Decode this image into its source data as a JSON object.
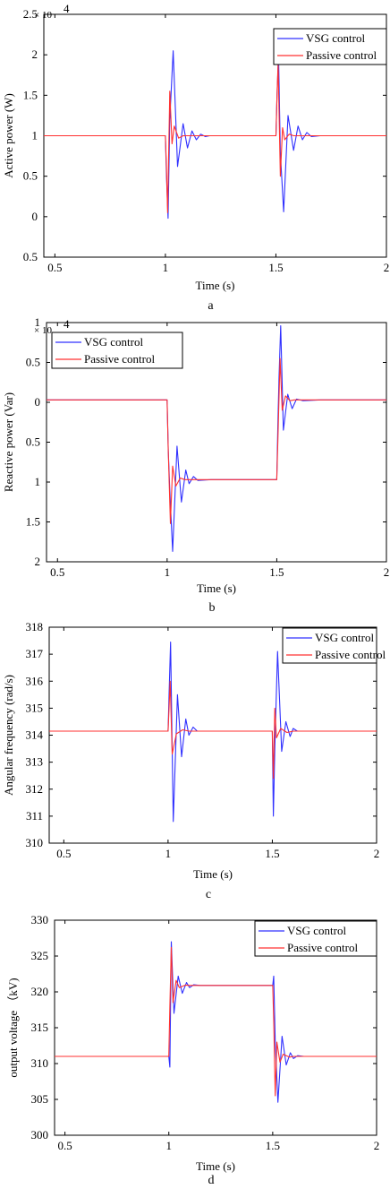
{
  "colors": {
    "vsg": "#3030ff",
    "passive": "#ff3030"
  },
  "charts": [
    {
      "id": "a",
      "caption": "a",
      "exponent_label": "× 10",
      "exponent_power": "4",
      "chart_data": {
        "type": "line",
        "xlabel": "Time (s)",
        "ylabel": "Active power (W)",
        "xlim": [
          0.45,
          2.0
        ],
        "ylim": [
          -0.5,
          2.5
        ],
        "y_scale": 10000,
        "xticks": [
          {
            "v": 0.5,
            "label": "0.5"
          },
          {
            "v": 1,
            "label": "1"
          },
          {
            "v": 1.5,
            "label": "1.5"
          },
          {
            "v": 2,
            "label": "2"
          }
        ],
        "yticks": [
          {
            "v": 2.5,
            "label": "2.5"
          },
          {
            "v": 2,
            "label": "2"
          },
          {
            "v": 1.5,
            "label": "1.5"
          },
          {
            "v": 1,
            "label": "1"
          },
          {
            "v": 0.5,
            "label": "0.5"
          },
          {
            "v": 0,
            "label": "0"
          },
          {
            "v": -0.5,
            "label": "0.5"
          }
        ],
        "legend": {
          "placement": "top-right"
        },
        "series": [
          {
            "name": "VSG control",
            "color_key": "vsg",
            "x": [
              0.45,
              1.0,
              1.005,
              1.012,
              1.02,
              1.035,
              1.055,
              1.08,
              1.1,
              1.12,
              1.14,
              1.16,
              1.18,
              1.2,
              1.25,
              1.5,
              1.505,
              1.512,
              1.52,
              1.535,
              1.555,
              1.58,
              1.6,
              1.62,
              1.64,
              1.66,
              1.7,
              2.0
            ],
            "y": [
              1.0,
              1.0,
              0.5,
              -0.02,
              1.2,
              2.05,
              0.62,
              1.15,
              0.85,
              1.06,
              0.95,
              1.02,
              0.99,
              1.0,
              1.0,
              1.0,
              1.5,
              2.0,
              0.8,
              0.06,
              1.25,
              0.82,
              1.12,
              0.95,
              1.04,
              0.99,
              1.0,
              1.0
            ]
          },
          {
            "name": "Passive control",
            "color_key": "passive",
            "x": [
              0.45,
              1.0,
              1.005,
              1.01,
              1.02,
              1.03,
              1.04,
              1.06,
              1.08,
              1.1,
              1.5,
              1.505,
              1.51,
              1.52,
              1.53,
              1.54,
              1.56,
              1.58,
              1.6,
              2.0
            ],
            "y": [
              1.0,
              1.0,
              0.6,
              0.05,
              1.55,
              0.9,
              1.12,
              0.97,
              1.0,
              1.0,
              1.0,
              1.5,
              1.9,
              0.5,
              1.1,
              0.95,
              1.02,
              1.0,
              1.0,
              1.0
            ]
          }
        ]
      }
    },
    {
      "id": "b",
      "caption": "b",
      "exponent_label": "× 10",
      "exponent_power": "4",
      "chart_data": {
        "type": "line",
        "xlabel": "Time (s)",
        "ylabel": "Reactive power (Var)",
        "xlim": [
          0.45,
          2.0
        ],
        "ylim": [
          -2.0,
          1.0
        ],
        "y_scale": 10000,
        "xticks": [
          {
            "v": 0.5,
            "label": "0.5"
          },
          {
            "v": 1,
            "label": "1"
          },
          {
            "v": 1.5,
            "label": "1.5"
          },
          {
            "v": 2,
            "label": "2"
          }
        ],
        "yticks": [
          {
            "v": 1,
            "label": "1"
          },
          {
            "v": 0.5,
            "label": "0.5"
          },
          {
            "v": 0,
            "label": "0"
          },
          {
            "v": -0.5,
            "label": "0.5"
          },
          {
            "v": -1,
            "label": "1"
          },
          {
            "v": -1.5,
            "label": "1.5"
          },
          {
            "v": -2,
            "label": "2"
          }
        ],
        "legend": {
          "placement": "top-left"
        },
        "series": [
          {
            "name": "VSG control",
            "color_key": "vsg",
            "x": [
              0.45,
              1.0,
              1.005,
              1.012,
              1.025,
              1.045,
              1.065,
              1.085,
              1.1,
              1.12,
              1.14,
              1.2,
              1.5,
              1.505,
              1.51,
              1.518,
              1.53,
              1.55,
              1.57,
              1.59,
              1.62,
              1.7,
              2.0
            ],
            "y": [
              0.03,
              0.03,
              -0.6,
              -1.1,
              -1.87,
              -0.55,
              -1.25,
              -0.85,
              -1.02,
              -0.93,
              -0.98,
              -0.97,
              -0.97,
              -0.3,
              0.3,
              0.96,
              -0.35,
              0.1,
              -0.08,
              0.04,
              0.02,
              0.03,
              0.03
            ]
          },
          {
            "name": "Passive control",
            "color_key": "passive",
            "x": [
              0.45,
              1.0,
              1.005,
              1.015,
              1.025,
              1.04,
              1.06,
              1.08,
              1.1,
              1.5,
              1.505,
              1.515,
              1.525,
              1.54,
              1.56,
              1.58,
              2.0
            ],
            "y": [
              0.03,
              0.03,
              -0.6,
              -1.52,
              -0.8,
              -1.05,
              -0.95,
              -0.97,
              -0.97,
              -0.97,
              -0.5,
              0.55,
              -0.1,
              0.08,
              0.02,
              0.03,
              0.03
            ]
          }
        ]
      }
    },
    {
      "id": "c",
      "caption": "c",
      "chart_data": {
        "type": "line",
        "xlabel": "Time (s)",
        "ylabel": "Angular frequency (rad/s)",
        "xlim": [
          0.43,
          2.0
        ],
        "ylim": [
          310,
          318
        ],
        "xticks": [
          {
            "v": 0.5,
            "label": "0.5"
          },
          {
            "v": 1,
            "label": "1"
          },
          {
            "v": 1.5,
            "label": "1.5"
          },
          {
            "v": 2,
            "label": "2"
          }
        ],
        "yticks": [
          {
            "v": 318,
            "label": "318"
          },
          {
            "v": 317,
            "label": "317"
          },
          {
            "v": 316,
            "label": "316"
          },
          {
            "v": 315,
            "label": "315"
          },
          {
            "v": 314,
            "label": "314"
          },
          {
            "v": 313,
            "label": "313"
          },
          {
            "v": 312,
            "label": "312"
          },
          {
            "v": 311,
            "label": "311"
          },
          {
            "v": 310,
            "label": "310"
          }
        ],
        "legend": {
          "placement": "top-right"
        },
        "series": [
          {
            "name": "VSG control",
            "color_key": "vsg",
            "x": [
              0.43,
              1.0,
              1.005,
              1.012,
              1.025,
              1.045,
              1.065,
              1.085,
              1.1,
              1.12,
              1.14,
              1.2,
              1.5,
              1.505,
              1.512,
              1.525,
              1.545,
              1.565,
              1.585,
              1.6,
              1.62,
              1.64,
              1.7,
              2.0
            ],
            "y": [
              314.15,
              314.15,
              315.5,
              317.45,
              310.8,
              315.5,
              313.2,
              314.6,
              314.0,
              314.3,
              314.15,
              314.15,
              314.15,
              311.0,
              313.5,
              317.1,
              313.4,
              314.5,
              313.95,
              314.25,
              314.15,
              314.15,
              314.15,
              314.15
            ]
          },
          {
            "name": "Passive control",
            "color_key": "passive",
            "x": [
              0.43,
              1.0,
              1.005,
              1.01,
              1.02,
              1.04,
              1.07,
              1.1,
              1.5,
              1.505,
              1.512,
              1.52,
              1.54,
              1.57,
              1.6,
              2.0
            ],
            "y": [
              314.15,
              314.15,
              315.0,
              316.0,
              313.3,
              314.05,
              314.2,
              314.15,
              314.15,
              312.4,
              315.0,
              313.9,
              314.25,
              314.1,
              314.15,
              314.15
            ]
          }
        ]
      }
    },
    {
      "id": "d",
      "caption": "d",
      "chart_data": {
        "type": "line",
        "xlabel": "Time (s)",
        "ylabel": "output voltage （kV)",
        "xlim": [
          0.45,
          2.0
        ],
        "ylim": [
          300,
          330
        ],
        "xticks": [
          {
            "v": 0.5,
            "label": "0.5"
          },
          {
            "v": 1,
            "label": "1"
          },
          {
            "v": 1.5,
            "label": "1.5"
          },
          {
            "v": 2,
            "label": "2"
          }
        ],
        "yticks": [
          {
            "v": 330,
            "label": "330"
          },
          {
            "v": 325,
            "label": "325"
          },
          {
            "v": 320,
            "label": "320"
          },
          {
            "v": 315,
            "label": "315"
          },
          {
            "v": 310,
            "label": "310"
          },
          {
            "v": 305,
            "label": "305"
          },
          {
            "v": 300,
            "label": "300"
          }
        ],
        "legend": {
          "placement": "top-right"
        },
        "series": [
          {
            "name": "VSG control",
            "color_key": "vsg",
            "x": [
              0.45,
              1.0,
              1.005,
              1.012,
              1.025,
              1.045,
              1.065,
              1.085,
              1.1,
              1.12,
              1.15,
              1.5,
              1.505,
              1.512,
              1.525,
              1.545,
              1.565,
              1.585,
              1.6,
              1.62,
              1.65,
              2.0
            ],
            "y": [
              311,
              311,
              309.5,
              327,
              317,
              322.2,
              319.8,
              321.3,
              320.6,
              321,
              320.9,
              320.9,
              322.2,
              313,
              304.6,
              313.8,
              309.8,
              311.5,
              310.7,
              311.1,
              311,
              311
            ]
          },
          {
            "name": "Passive control",
            "color_key": "passive",
            "x": [
              0.45,
              1.0,
              1.005,
              1.012,
              1.02,
              1.035,
              1.05,
              1.08,
              1.1,
              1.5,
              1.505,
              1.512,
              1.52,
              1.535,
              1.55,
              1.58,
              1.6,
              2.0
            ],
            "y": [
              311,
              311,
              318,
              326.2,
              318.5,
              321.6,
              320.6,
              320.95,
              320.9,
              320.9,
              316,
              305.5,
              313,
              310.2,
              311.3,
              310.9,
              311,
              311
            ]
          }
        ]
      }
    }
  ]
}
